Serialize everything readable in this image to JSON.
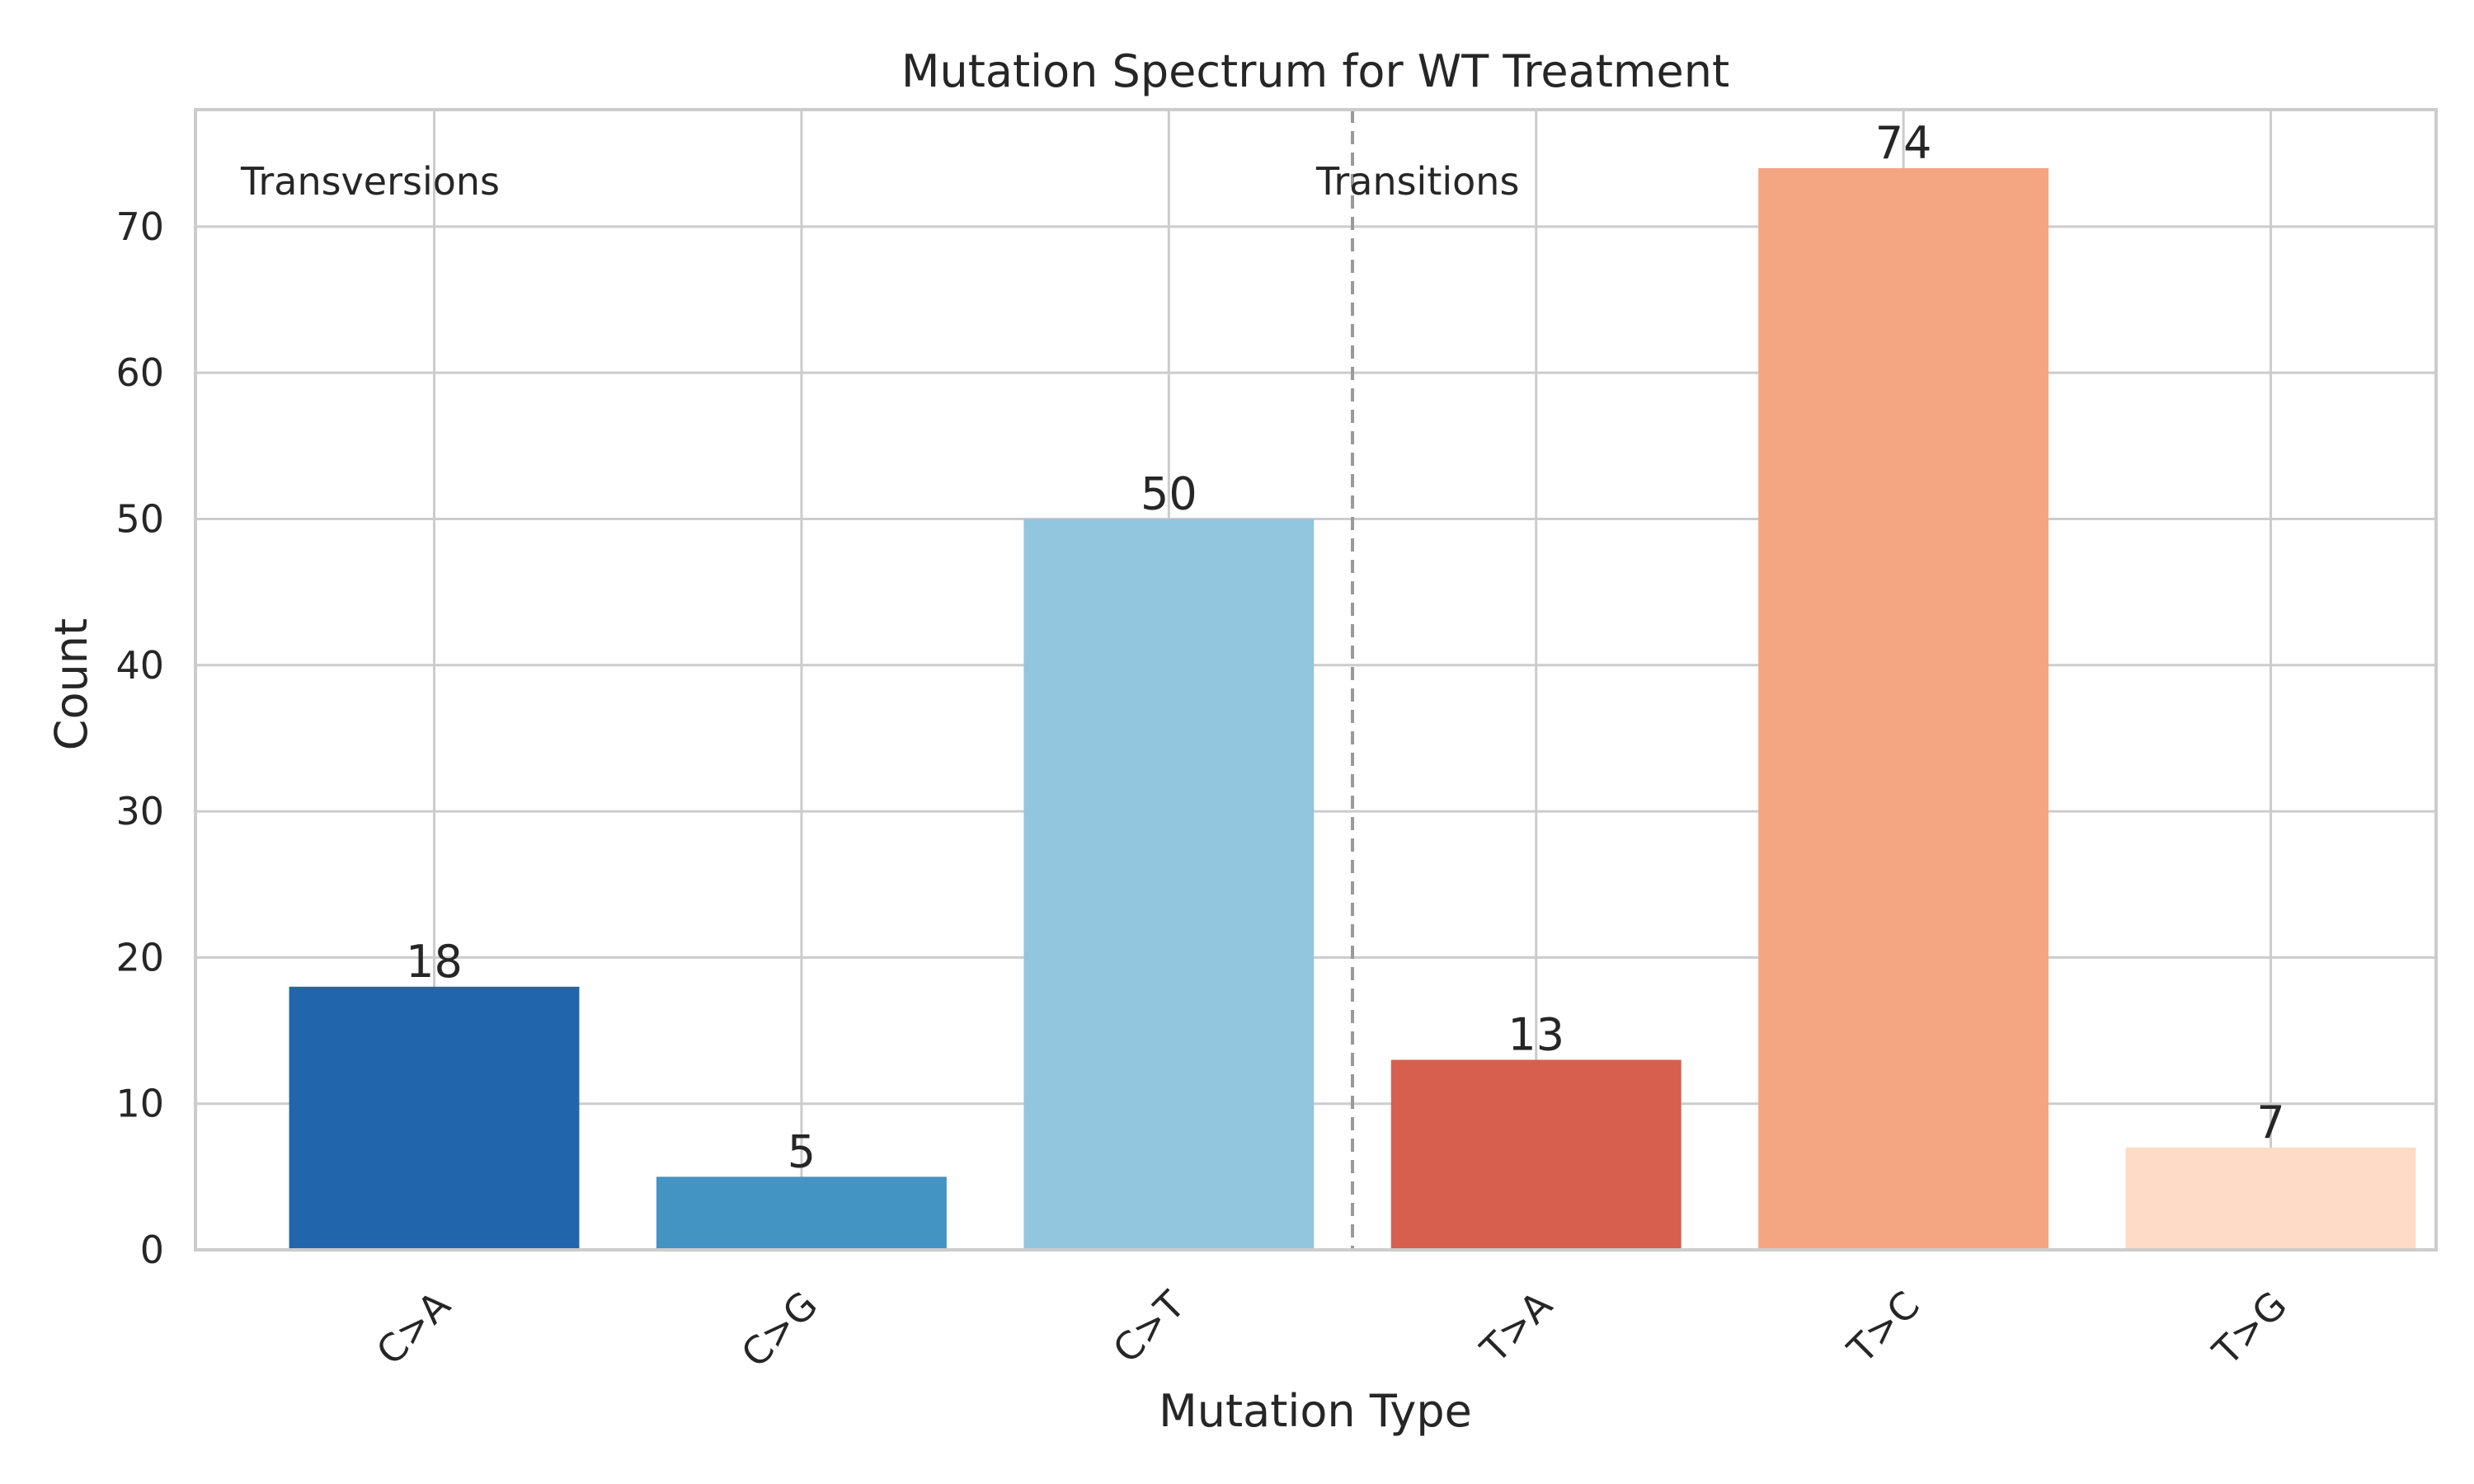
{
  "chart_data": {
    "type": "bar",
    "title": "Mutation Spectrum for WT Treatment",
    "xlabel": "Mutation Type",
    "ylabel": "Count",
    "categories": [
      "C>A",
      "C>G",
      "C>T",
      "T>A",
      "T>C",
      "T>G"
    ],
    "values": [
      18,
      5,
      50,
      13,
      74,
      7
    ],
    "colors": [
      "#2166ac",
      "#4393c3",
      "#92c5de",
      "#d6604d",
      "#f4a582",
      "#fddbc7"
    ],
    "ylim": [
      0,
      78
    ],
    "yticks": [
      0,
      10,
      20,
      30,
      40,
      50,
      60,
      70
    ],
    "grid": true,
    "annotations": [
      {
        "text": "Transversions",
        "color": "#2166ac"
      },
      {
        "text": "Transitions",
        "color": "#d6604d"
      }
    ],
    "divider": {
      "style": "dashed",
      "position_between": [
        "C>T",
        "T>A"
      ]
    }
  }
}
